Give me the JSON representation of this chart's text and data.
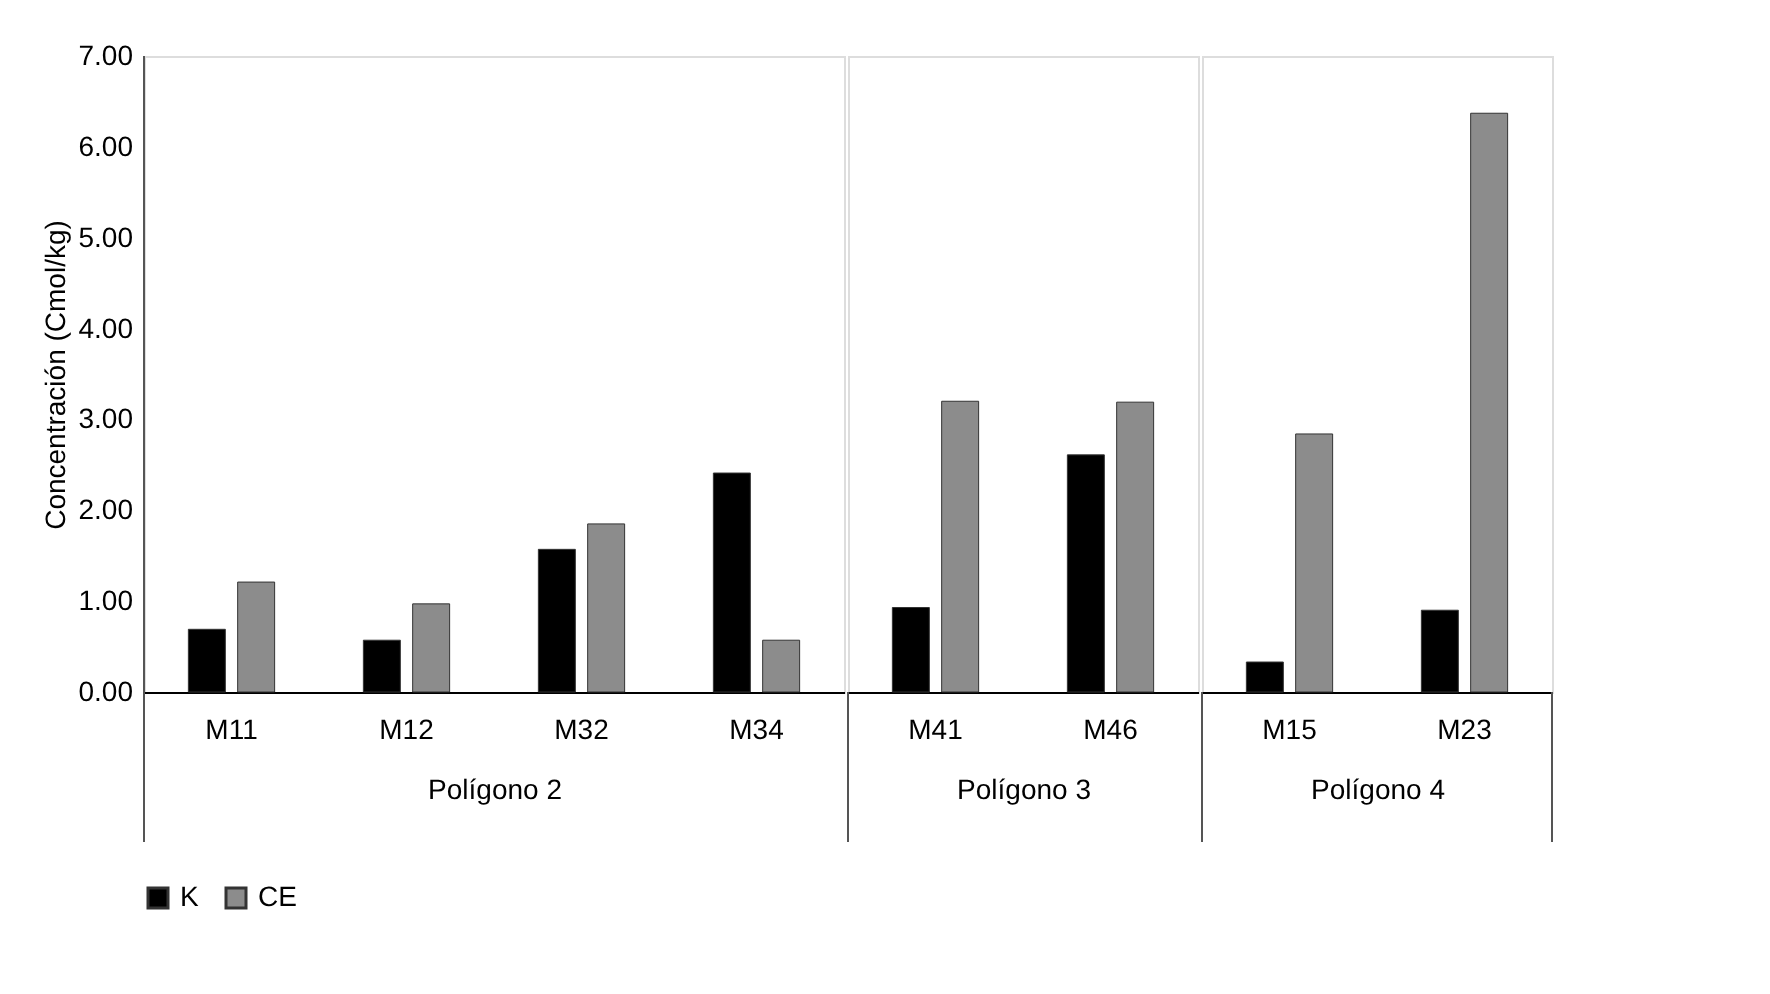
{
  "chart_data": [
    {
      "type": "bar",
      "ylabel": "Concentración (Cmol/kg)",
      "xlabel": "Polígono 2",
      "categories": [
        "M11",
        "M12",
        "M32",
        "M34"
      ],
      "series": [
        {
          "name": "K",
          "color": "#000000",
          "values": [
            0.69,
            0.57,
            1.57,
            2.41
          ]
        },
        {
          "name": "CE",
          "color": "#8c8c8c",
          "values": [
            1.21,
            0.97,
            1.85,
            0.57
          ]
        }
      ],
      "ylim": [
        0,
        7
      ],
      "yticks": [
        {
          "value": 0,
          "label": "0.00"
        },
        {
          "value": 1,
          "label": "1.00"
        },
        {
          "value": 2,
          "label": "2.00"
        },
        {
          "value": 3,
          "label": "3.00"
        },
        {
          "value": 4,
          "label": "4.00"
        },
        {
          "value": 5,
          "label": "5.00"
        },
        {
          "value": 6,
          "label": "6.00"
        },
        {
          "value": 7,
          "label": "7.00"
        }
      ],
      "legend": "bottom"
    },
    {
      "type": "bar",
      "xlabel": "Polígono 3",
      "categories": [
        "M41",
        "M46"
      ],
      "series": [
        {
          "name": "K",
          "color": "#000000",
          "values": [
            0.93,
            2.61
          ]
        },
        {
          "name": "CE",
          "color": "#8c8c8c",
          "values": [
            3.2,
            3.19
          ]
        }
      ],
      "ylim": [
        0,
        7
      ],
      "tick_labels": "x"
    },
    {
      "type": "bar",
      "xlabel": "Polígono 4",
      "categories": [
        "M15",
        "M23"
      ],
      "series": [
        {
          "name": "K",
          "color": "#000000",
          "values": [
            0.33,
            0.9
          ]
        },
        {
          "name": "CE",
          "color": "#8c8c8c",
          "values": [
            2.84,
            6.37
          ]
        }
      ],
      "ylim": [
        0,
        7
      ],
      "tick_labels": "x"
    }
  ]
}
